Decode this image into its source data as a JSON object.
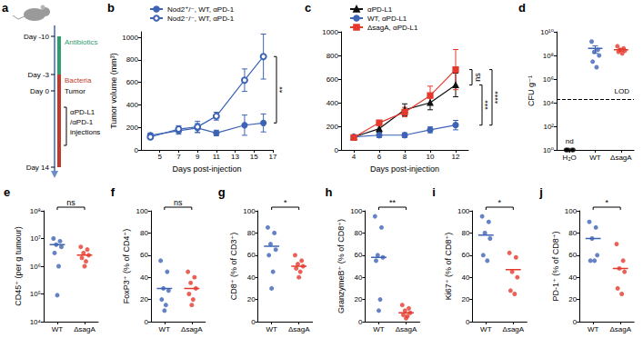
{
  "chart_data": [
    {
      "title": "a",
      "type": "timeline",
      "events": [
        {
          "day": -10,
          "label": "Day -10"
        },
        {
          "day": -3,
          "label": "Day -3"
        },
        {
          "day": 0,
          "label": "Day 0"
        },
        {
          "day": 14,
          "label": "Day 14"
        }
      ],
      "spans": [
        {
          "label": "Antibiotics",
          "from": -10,
          "to": -3,
          "color": "#2f9e6e"
        },
        {
          "label": "Bacteria",
          "from": -3,
          "to": 14,
          "color": "#c0392b"
        }
      ],
      "marks": [
        {
          "label": "Tumor",
          "day": 0
        }
      ],
      "injections": {
        "lines": [
          "αPD-L1",
          "/αPD-1",
          "injections"
        ],
        "from": 3,
        "to": 10
      }
    },
    {
      "title": "b",
      "type": "line",
      "x_label": "Days post-injection",
      "y_label": "Tumor volume (mm³)",
      "x": [
        4,
        7,
        9,
        11,
        14,
        16
      ],
      "xlim": [
        3,
        17
      ],
      "xticks": [
        5,
        7,
        9,
        11,
        13,
        15,
        17
      ],
      "ylim": [
        0,
        1050
      ],
      "yticks": [
        0,
        200,
        400,
        600,
        800,
        1000
      ],
      "grid": false,
      "legend": "top-left",
      "series": [
        {
          "name": "Nod2⁺/⁻, WT, αPD-1",
          "color": "#3d63b5",
          "marker": "circle",
          "values": [
            130,
            170,
            195,
            150,
            220,
            240
          ],
          "errors": [
            20,
            30,
            40,
            25,
            90,
            80
          ]
        },
        {
          "name": "Nod2⁻/⁻, WT, αPD-1",
          "color": "#3d63b5",
          "marker": "empty-circle",
          "values": [
            115,
            185,
            205,
            300,
            620,
            830
          ],
          "errors": [
            15,
            30,
            50,
            35,
            100,
            200
          ]
        }
      ],
      "comparisons": [
        {
          "label": "**",
          "series": [
            "Nod2⁺/⁻, WT, αPD-1",
            "Nod2⁻/⁻, WT, αPD-1"
          ]
        }
      ]
    },
    {
      "title": "c",
      "type": "line",
      "x_label": "Days post-injection",
      "x": [
        4,
        6,
        8,
        10,
        12
      ],
      "xlim": [
        3,
        13
      ],
      "xticks": [
        4,
        6,
        8,
        10,
        12
      ],
      "ylim": [
        0,
        1000
      ],
      "yticks": [
        0,
        200,
        400,
        600,
        800,
        1000
      ],
      "grid": false,
      "legend": "top-left",
      "series": [
        {
          "name": "αPD-L1",
          "color": "#111111",
          "marker": "triangle",
          "values": [
            110,
            180,
            340,
            400,
            550
          ],
          "errors": [
            15,
            30,
            50,
            60,
            100
          ]
        },
        {
          "name": "WT, αPD-L1",
          "color": "#3d63b5",
          "marker": "circle",
          "values": [
            110,
            125,
            125,
            170,
            210
          ],
          "errors": [
            10,
            20,
            20,
            25,
            40
          ]
        },
        {
          "name": "ΔsagA, αPD-L1",
          "color": "#e5392d",
          "marker": "rect",
          "values": [
            105,
            230,
            320,
            460,
            680
          ],
          "errors": [
            10,
            20,
            40,
            80,
            170
          ]
        }
      ],
      "comparisons": [
        {
          "label": "ns",
          "series": [
            "αPD-L1",
            "ΔsagA, αPD-L1"
          ]
        },
        {
          "label": "***",
          "series": [
            "WT, αPD-L1",
            "αPD-L1"
          ]
        },
        {
          "label": "****",
          "series": [
            "WT, αPD-L1",
            "ΔsagA, αPD-L1"
          ]
        }
      ]
    },
    {
      "title": "d",
      "type": "dot",
      "y_label": "CFU g⁻¹",
      "log": "y",
      "categories": [
        "H₂O",
        "WT",
        "ΔsagA"
      ],
      "colors": [
        "#000000",
        "#3d63b5",
        "#e5392d"
      ],
      "values": [
        [
          1,
          1,
          1,
          1,
          1
        ],
        [
          1500000000,
          300000000,
          200000000,
          100000000,
          30000000,
          10000000
        ],
        [
          600000000,
          400000000,
          300000000,
          250000000,
          200000000,
          150000000
        ]
      ],
      "centers": [
        null,
        400000000,
        300000000
      ],
      "sem": [
        null,
        250000000,
        70000000
      ],
      "ylim": [
        1,
        10000000000
      ],
      "yticks": [
        {
          "value": 1,
          "label": "10⁰"
        },
        {
          "value": 100,
          "label": "10²"
        },
        {
          "value": 10000,
          "label": "10⁴"
        },
        {
          "value": 1000000,
          "label": "10⁶"
        },
        {
          "value": 100000000,
          "label": "10⁸"
        },
        {
          "value": 10000000000,
          "label": "10¹⁰"
        }
      ],
      "lod": 20000,
      "lod_label": "LOD",
      "not_detected": {
        "category": "H₂O",
        "label": "nd"
      },
      "grid": false
    },
    {
      "title": "e",
      "type": "dot",
      "y_label": "CD45⁺ (per g tumour)",
      "log": "y",
      "categories": [
        "WT",
        "ΔsagA"
      ],
      "colors": [
        "#3d63b5",
        "#e5392d"
      ],
      "values": [
        [
          10000000,
          8000000,
          6000000,
          5000000,
          3000000,
          1000000,
          90000
        ],
        [
          5000000,
          4000000,
          3000000,
          2500000,
          2000000,
          1500000,
          1000000
        ]
      ],
      "centers": [
        6000000,
        2500000
      ],
      "ylim": [
        10000,
        100000000
      ],
      "yticks": [
        {
          "value": 10000,
          "label": "10⁴"
        },
        {
          "value": 100000,
          "label": "10⁵"
        },
        {
          "value": 1000000,
          "label": "10⁶"
        },
        {
          "value": 10000000,
          "label": "10⁷"
        },
        {
          "value": 100000000,
          "label": "10⁸"
        }
      ],
      "annotation": "ns",
      "grid": false
    },
    {
      "title": "f",
      "type": "dot",
      "y_label": "FoxP3⁺ (% of CD4⁺)",
      "categories": [
        "WT",
        "ΔsagA"
      ],
      "colors": [
        "#3d63b5",
        "#e5392d"
      ],
      "values": [
        [
          55,
          45,
          30,
          28,
          20,
          15,
          10
        ],
        [
          45,
          40,
          35,
          30,
          25,
          20,
          15
        ]
      ],
      "centers": [
        30,
        30
      ],
      "ylim": [
        0,
        100
      ],
      "yticks": [
        0,
        20,
        40,
        60,
        80,
        100
      ],
      "annotation": "ns",
      "grid": false
    },
    {
      "title": "g",
      "type": "dot",
      "y_label": "CD8⁺ (% of CD3⁺)",
      "categories": [
        "WT",
        "ΔsagA"
      ],
      "colors": [
        "#3d63b5",
        "#e5392d"
      ],
      "values": [
        [
          85,
          80,
          70,
          65,
          60,
          45,
          30
        ],
        [
          60,
          55,
          52,
          50,
          48,
          45,
          40
        ]
      ],
      "centers": [
        68,
        50
      ],
      "ylim": [
        0,
        100
      ],
      "yticks": [
        0,
        20,
        40,
        60,
        80,
        100
      ],
      "annotation": "*",
      "grid": false
    },
    {
      "title": "h",
      "type": "dot",
      "y_label": "GranzymeB⁺ (% of CD8⁺)",
      "categories": [
        "WT",
        "ΔsagA"
      ],
      "colors": [
        "#3d63b5",
        "#e5392d"
      ],
      "values": [
        [
          95,
          85,
          60,
          58,
          55,
          20,
          10
        ],
        [
          15,
          12,
          10,
          8,
          6,
          5,
          3
        ]
      ],
      "centers": [
        58,
        8
      ],
      "ylim": [
        0,
        100
      ],
      "yticks": [
        0,
        20,
        40,
        60,
        80,
        100
      ],
      "annotation": "**",
      "grid": false
    },
    {
      "title": "i",
      "type": "dot",
      "y_label": "Ki67⁺ (% of CD8⁺)",
      "categories": [
        "WT",
        "ΔsagA"
      ],
      "colors": [
        "#3d63b5",
        "#e5392d"
      ],
      "values": [
        [
          95,
          90,
          80,
          75,
          60,
          55
        ],
        [
          62,
          58,
          45,
          40,
          28,
          25
        ]
      ],
      "centers": [
        78,
        47
      ],
      "ylim": [
        0,
        100
      ],
      "yticks": [
        0,
        20,
        40,
        60,
        80,
        100
      ],
      "annotation": "*",
      "grid": false
    },
    {
      "title": "j",
      "type": "dot",
      "y_label": "PD-1⁺ (% of CD8⁺)",
      "categories": [
        "WT",
        "ΔsagA"
      ],
      "colors": [
        "#3d63b5",
        "#e5392d"
      ],
      "values": [
        [
          90,
          85,
          75,
          60,
          55,
          55
        ],
        [
          70,
          55,
          48,
          45,
          30,
          25
        ]
      ],
      "centers": [
        75,
        48
      ],
      "ylim": [
        0,
        100
      ],
      "yticks": [
        0,
        20,
        40,
        60,
        80,
        100
      ],
      "annotation": "*",
      "grid": false
    }
  ]
}
